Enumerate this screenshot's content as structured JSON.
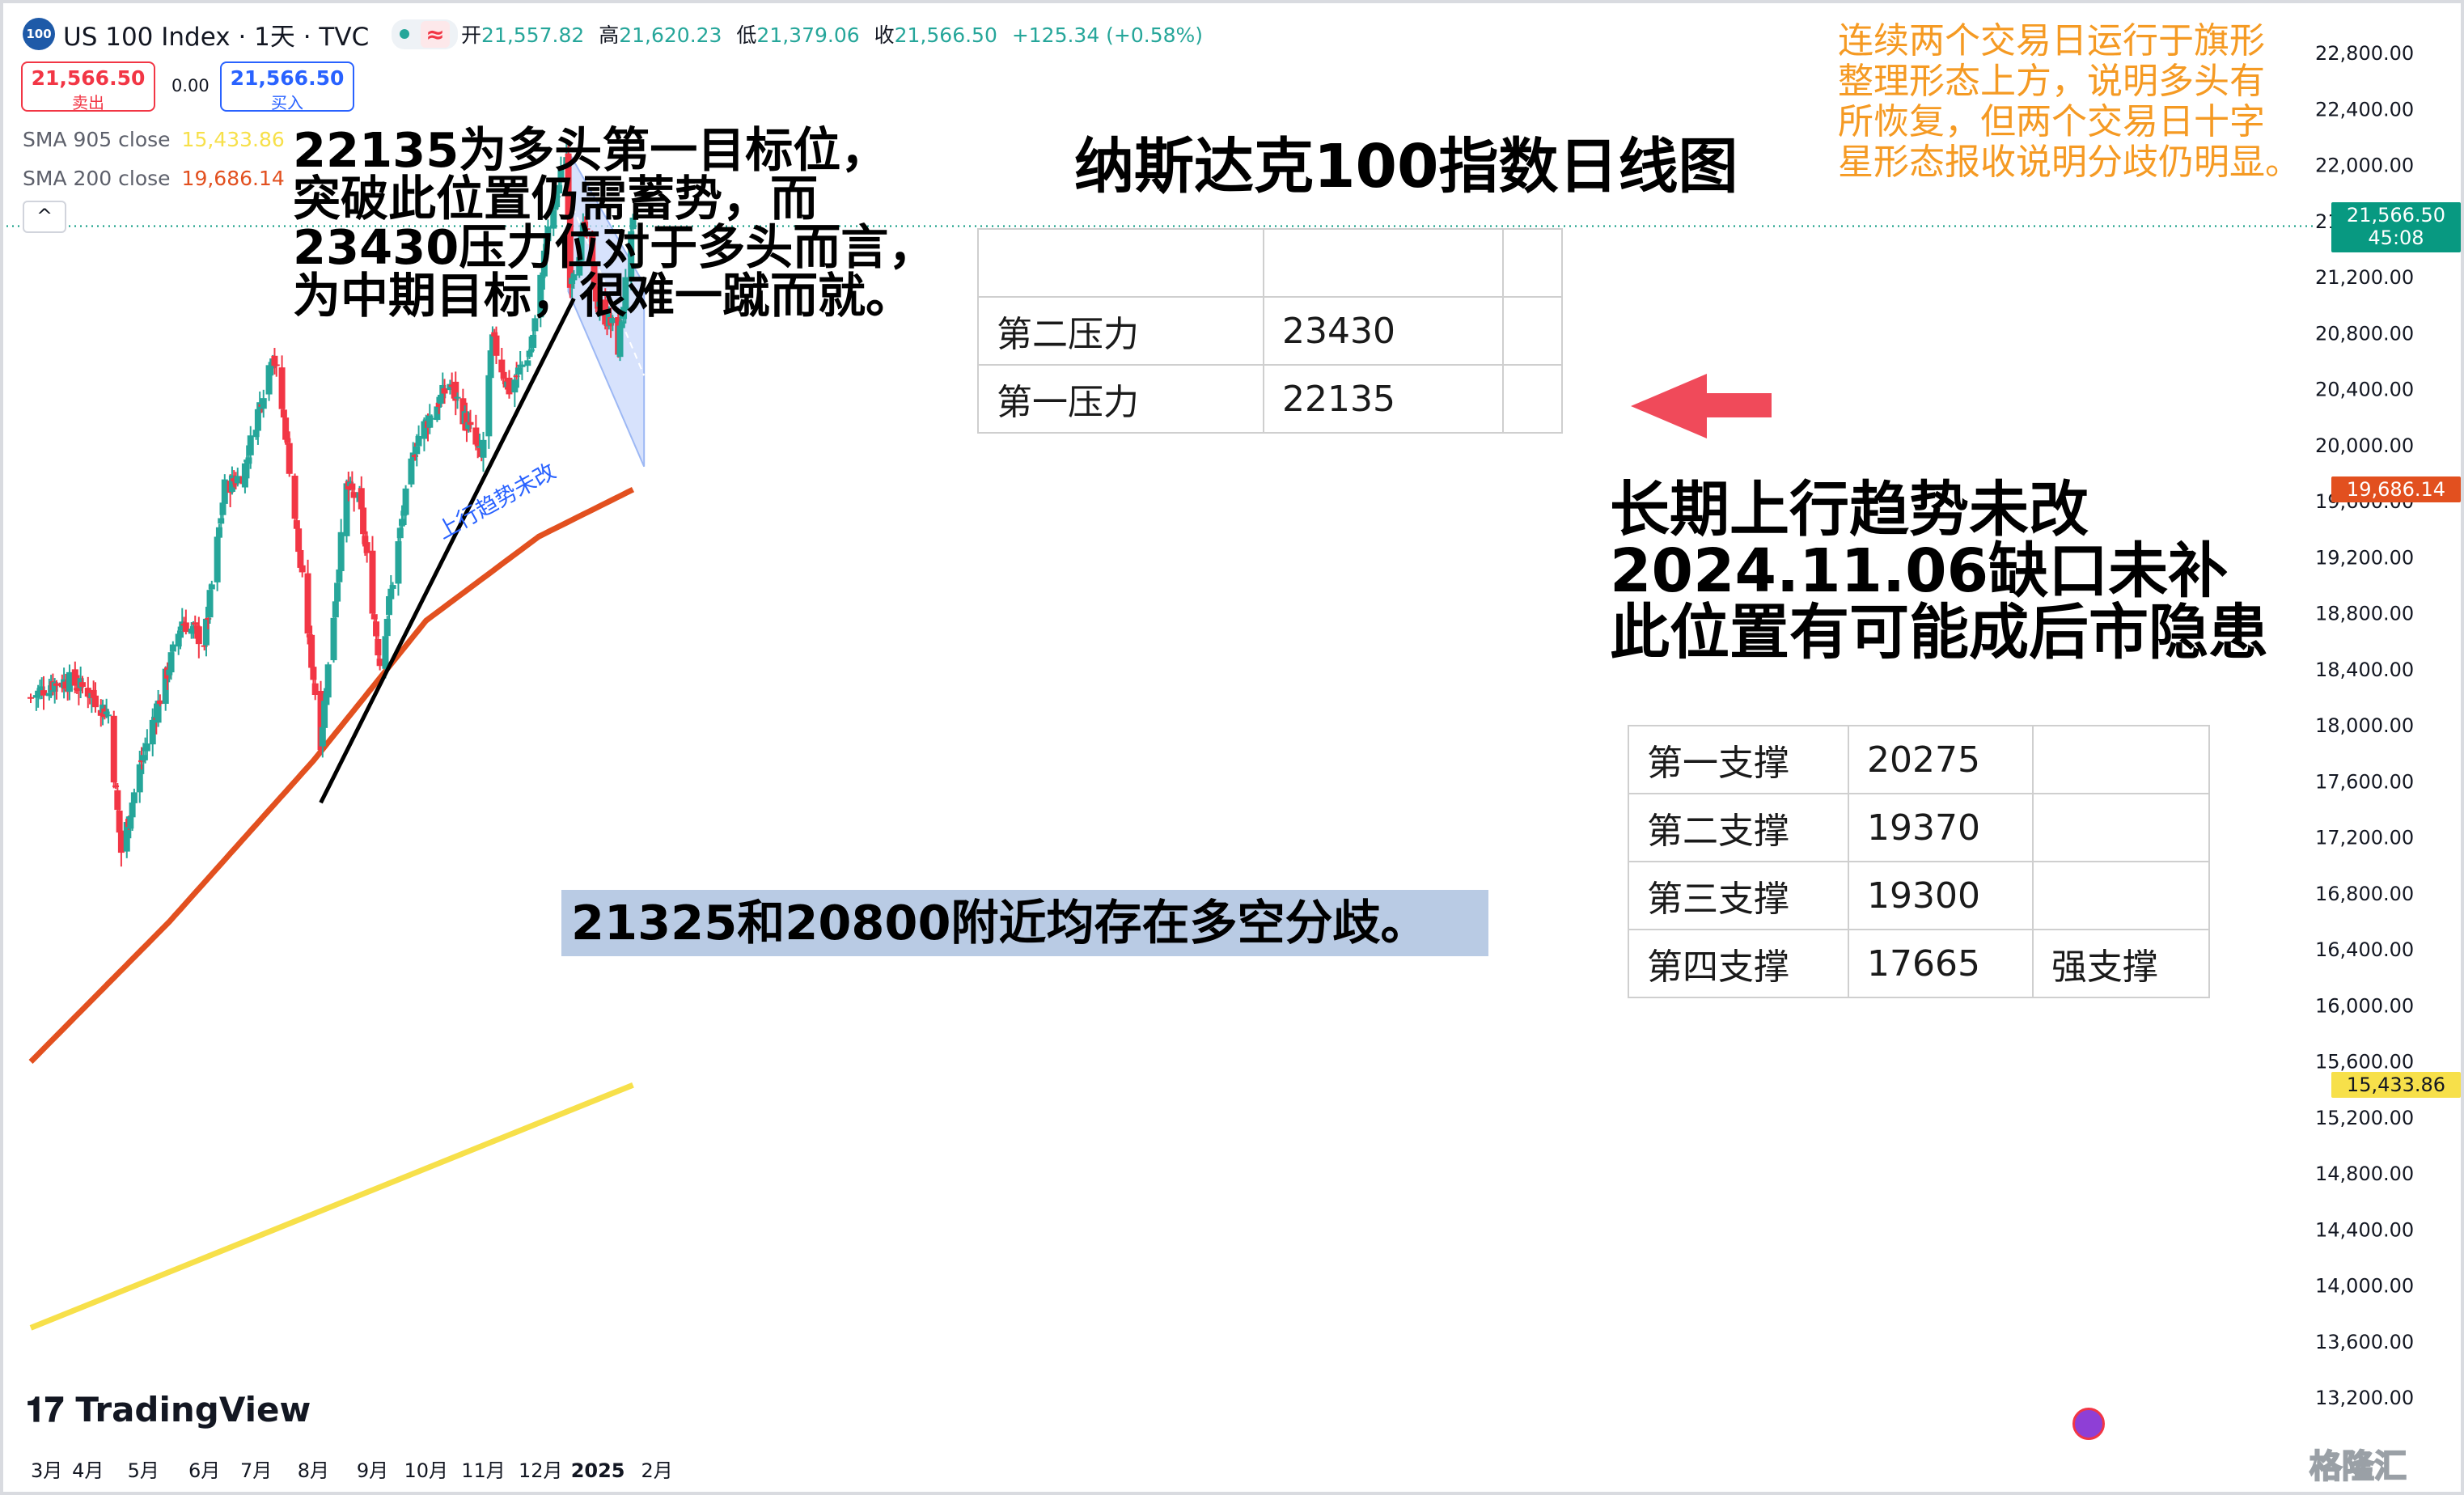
{
  "header": {
    "logo_text": "100",
    "symbol": "US 100 Index · 1天 · TVC",
    "ohlc": [
      {
        "label": "开",
        "value": "21,557.82"
      },
      {
        "label": "高",
        "value": "21,620.23"
      },
      {
        "label": "低",
        "value": "21,379.06"
      },
      {
        "label": "收",
        "value": "21,566.50"
      }
    ],
    "change": "+125.34 (+0.58%)",
    "wave_icon": "≈"
  },
  "trade": {
    "sell_price": "21,566.50",
    "sell_label": "卖出",
    "spread": "0.00",
    "buy_price": "21,566.50",
    "buy_label": "买入"
  },
  "indicators": [
    {
      "label": "SMA 905 close",
      "value": "15,433.86",
      "color": "#f7e04a"
    },
    {
      "label": "SMA 200 close",
      "value": "19,686.14",
      "color": "#e2501f"
    }
  ],
  "collapse_icon": "^",
  "annotations": {
    "title": "纳斯达克100指数日线图",
    "left_note": [
      "22135为多头第一目标位，",
      "突破此位置仍需蓄势，而",
      "23430压力位对于多头而言，",
      "为中期目标，很难一蹴而就。"
    ],
    "orange_note": [
      "连续两个交易日运行于旗形",
      "整理形态上方，说明多头有",
      "所恢复，但两个交易日十字",
      "星形态报收说明分歧仍明显。"
    ],
    "right_note": [
      "长期上行趋势未改",
      "2024.11.06缺口未补",
      "此位置有可能成后市隐患"
    ],
    "bottom_note": "21325和20800附近均存在多空分歧。",
    "trend_label": "上行趋势未改"
  },
  "resistance_table": [
    [
      "",
      "",
      ""
    ],
    [
      "第二压力",
      "23430",
      ""
    ],
    [
      "第一压力",
      "22135",
      ""
    ]
  ],
  "support_table": [
    [
      "第一支撑",
      "20275",
      ""
    ],
    [
      "第二支撑",
      "19370",
      ""
    ],
    [
      "第三支撑",
      "19300",
      ""
    ],
    [
      "第四支撑",
      "17665",
      "强支撑"
    ]
  ],
  "price_tags": {
    "last_price": "21,566.50",
    "countdown": "45:08",
    "sma200": "19,686.14",
    "sma905": "15,433.86"
  },
  "branding": {
    "tradingview": "TradingView",
    "watermark": "格隆汇"
  },
  "chart_data": {
    "type": "candlestick",
    "y_axis": {
      "ticks": [
        13200,
        13600,
        14000,
        14400,
        14800,
        15200,
        15600,
        16000,
        16400,
        16800,
        17200,
        17600,
        18000,
        18400,
        18800,
        19200,
        19600,
        20000,
        20400,
        20800,
        21200,
        21600,
        22000,
        22400,
        22800
      ],
      "range": [
        13000,
        23200
      ]
    },
    "x_axis": {
      "labels": [
        "3月",
        "4月",
        "5月",
        "6月",
        "7月",
        "8月",
        "9月",
        "10月",
        "11月",
        "12月",
        "2025",
        "2月"
      ]
    },
    "waypoints_close": [
      [
        "2024-03-01",
        18200
      ],
      [
        "2024-03-12",
        18300
      ],
      [
        "2024-03-21",
        18320
      ],
      [
        "2024-04-01",
        18250
      ],
      [
        "2024-04-12",
        18080
      ],
      [
        "2024-04-19",
        17100
      ],
      [
        "2024-04-29",
        17700
      ],
      [
        "2024-05-10",
        18200
      ],
      [
        "2024-05-22",
        18750
      ],
      [
        "2024-06-03",
        18600
      ],
      [
        "2024-06-14",
        19700
      ],
      [
        "2024-06-24",
        19800
      ],
      [
        "2024-07-10",
        20680
      ],
      [
        "2024-07-17",
        20100
      ],
      [
        "2024-07-24",
        19250
      ],
      [
        "2024-08-05",
        17900
      ],
      [
        "2024-08-19",
        19700
      ],
      [
        "2024-08-26",
        19600
      ],
      [
        "2024-09-06",
        18450
      ],
      [
        "2024-09-19",
        19550
      ],
      [
        "2024-09-26",
        20050
      ],
      [
        "2024-10-14",
        20450
      ],
      [
        "2024-10-31",
        19900
      ],
      [
        "2024-11-06",
        20750
      ],
      [
        "2024-11-15",
        20400
      ],
      [
        "2024-11-27",
        20700
      ],
      [
        "2024-12-05",
        21450
      ],
      [
        "2024-12-16",
        22100
      ],
      [
        "2024-12-18",
        21200
      ],
      [
        "2024-12-26",
        21550
      ],
      [
        "2025-01-02",
        21000
      ],
      [
        "2025-01-10",
        20850
      ],
      [
        "2025-01-13",
        20700
      ],
      [
        "2025-01-21",
        21566
      ]
    ],
    "sma_200": [
      [
        "2024-03-01",
        15600
      ],
      [
        "2024-05-15",
        16600
      ],
      [
        "2024-08-01",
        17750
      ],
      [
        "2024-10-01",
        18750
      ],
      [
        "2024-12-01",
        19350
      ],
      [
        "2025-01-21",
        19686
      ]
    ],
    "sma_905": [
      [
        "2024-03-01",
        13700
      ],
      [
        "2025-01-21",
        15434
      ]
    ],
    "trend_line": [
      [
        "2024-08-05",
        17450
      ],
      [
        "2024-12-20",
        21050
      ]
    ],
    "flag_channel_upper": [
      [
        "2024-12-17",
        22100
      ],
      [
        "2025-01-27",
        21150
      ]
    ],
    "flag_channel_lower": [
      [
        "2024-12-17",
        21100
      ],
      [
        "2025-01-27",
        19850
      ]
    ],
    "horizontal_line": 21566.5,
    "colors": {
      "up": "#26a69a",
      "down": "#f23645",
      "sma200": "#e2501f",
      "sma905": "#f7e04a",
      "trend": "#000000",
      "channel": "#c9d8fb"
    }
  }
}
